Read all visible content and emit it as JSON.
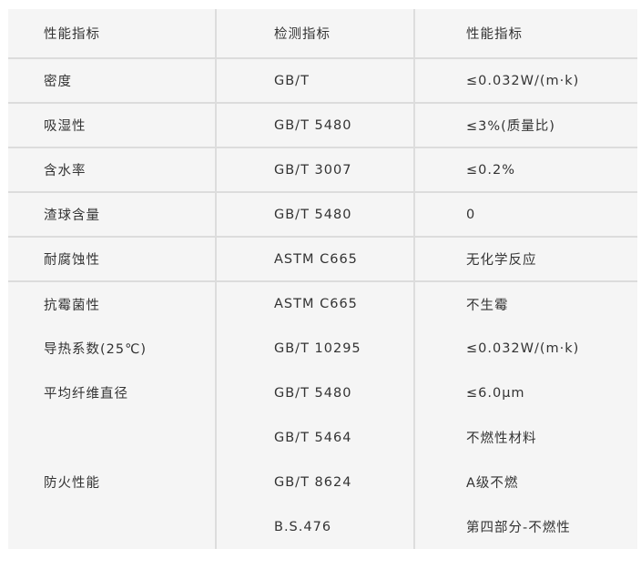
{
  "table": {
    "headers": [
      "性能指标",
      "检测指标",
      "性能指标"
    ],
    "rows": [
      [
        "密度",
        "GB/T",
        "≤0.032W/(m·k)"
      ],
      [
        "吸湿性",
        "GB/T 5480",
        "≤3%(质量比)"
      ],
      [
        "含水率",
        "GB/T 3007",
        "≤0.2%"
      ],
      [
        "渣球含量",
        "GB/T 5480",
        "0"
      ],
      [
        "耐腐蚀性",
        "ASTM C665",
        "无化学反应"
      ],
      [
        "抗霉菌性",
        "ASTM C665",
        "不生霉"
      ],
      [
        "导热系数(25℃)",
        "GB/T 10295",
        "≤0.032W/(m·k)"
      ],
      [
        "平均纤维直径",
        "GB/T 5480",
        "≤6.0μm"
      ]
    ],
    "fire": {
      "label": "防火性能",
      "rows": [
        [
          "GB/T 5464",
          "不燃性材料"
        ],
        [
          "GB/T 8624",
          "A级不燃"
        ],
        [
          "B.S.476",
          "第四部分-不燃性"
        ]
      ]
    }
  }
}
